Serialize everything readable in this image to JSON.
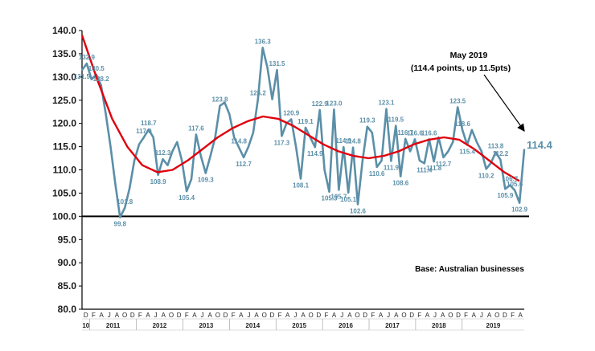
{
  "chart_data": {
    "type": "line",
    "title": "",
    "xlabel": "",
    "ylabel": "",
    "ylim": [
      80,
      140
    ],
    "y_ticks": [
      "80.0",
      "85.0",
      "90.0",
      "95.0",
      "100.0",
      "105.0",
      "110.0",
      "115.0",
      "120.0",
      "125.0",
      "130.0",
      "135.0",
      "140.0"
    ],
    "baseline": 100,
    "grid": false,
    "x_month_labels": [
      "D",
      "F",
      "A",
      "J",
      "A",
      "O",
      "D",
      "F",
      "A",
      "J",
      "A",
      "O",
      "D",
      "F",
      "A",
      "J",
      "A",
      "O",
      "D",
      "F",
      "A",
      "J",
      "A",
      "O",
      "D",
      "F",
      "A",
      "J",
      "A",
      "O",
      "D",
      "F",
      "A",
      "J",
      "A",
      "O",
      "D",
      "F",
      "A",
      "J",
      "A",
      "O",
      "D",
      "F",
      "A",
      "J",
      "A",
      "O",
      "D",
      "F",
      "A",
      "J",
      "A",
      "O",
      "D",
      "F",
      "A"
    ],
    "x_year_labels": [
      "10",
      "2011",
      "2012",
      "2013",
      "2014",
      "2015",
      "2016",
      "2017",
      "2018",
      "2019"
    ],
    "x_start": "2010-12",
    "x_end": "2019-05",
    "series": [
      {
        "values": [
          131.5,
          132.9,
          129.5,
          130.5,
          128.2,
          122.0,
          115.0,
          107.0,
          99.8,
          101.8,
          106.0,
          112.0,
          115.5,
          117.0,
          118.7,
          117.0,
          108.9,
          112.3,
          111.0,
          114.0,
          116.0,
          112.0,
          105.4,
          108.0,
          117.6,
          113.0,
          109.3,
          113.0,
          117.0,
          123.8,
          124.5,
          122.0,
          117.0,
          114.8,
          112.7,
          115.0,
          118.0,
          125.2,
          136.3,
          132.0,
          125.2,
          131.5,
          117.3,
          120.0,
          120.9,
          115.0,
          108.1,
          119.1,
          117.0,
          114.9,
          122.9,
          110.0,
          105.3,
          123.0,
          105.7,
          114.9,
          105.1,
          114.8,
          102.6,
          112.0,
          119.3,
          118.0,
          110.6,
          112.0,
          123.1,
          111.9,
          119.5,
          108.6,
          116.7,
          114.0,
          116.6,
          112.0,
          111.4,
          116.6,
          111.8,
          117.0,
          112.7,
          114.0,
          116.0,
          123.5,
          118.6,
          115.4,
          118.6,
          116.0,
          114.0,
          110.2,
          111.5,
          113.8,
          112.2,
          105.9,
          106.7,
          105.6,
          102.9,
          114.4
        ],
        "color": "#5b8fa8",
        "line_width": "medium"
      },
      {
        "type": "polynomial trend line",
        "color": "#e0000d",
        "values": [
          139.0,
          129.5,
          121.0,
          115.0,
          111.0,
          109.5,
          110.0,
          112.0,
          114.5,
          117.0,
          119.0,
          120.5,
          121.5,
          121.0,
          119.5,
          117.5,
          115.5,
          114.0,
          113.0,
          112.5,
          113.0,
          114.0,
          115.5,
          116.5,
          117.0,
          116.5,
          114.5,
          112.0,
          109.5,
          107.6
        ]
      }
    ],
    "data_labels": [
      "131.5",
      "132.9",
      "130.5",
      "128.2",
      "99.8",
      "101.8",
      "118.7",
      "108.9",
      "112.3",
      "105.4",
      "117.6",
      "109.3",
      "123.8",
      "114.8",
      "112.7",
      "136.3",
      "125.2",
      "117.3",
      "131.5",
      "120.9",
      "108.1",
      "119.1",
      "122.9",
      "114.9",
      "105.3",
      "123.0",
      "114.9",
      "105.7",
      "114.8",
      "105.1",
      "119.3",
      "102.6",
      "110.6",
      "123.1",
      "111.9",
      "119.5",
      "108.6",
      "116.7",
      "116.6",
      "111.4",
      "116.6",
      "111.8",
      "117.0",
      "112.7",
      "123.5",
      "118.6",
      "115.4",
      "110.2",
      "113.8",
      "112.2",
      "105.9",
      "106.7",
      "105.6",
      "102.9"
    ],
    "last_value_label": "114.4",
    "annotations": {
      "headline": "May 2019",
      "detail": "(114.4 points, up 11.5pts)",
      "base_note": "Base: Australian businesses"
    }
  }
}
